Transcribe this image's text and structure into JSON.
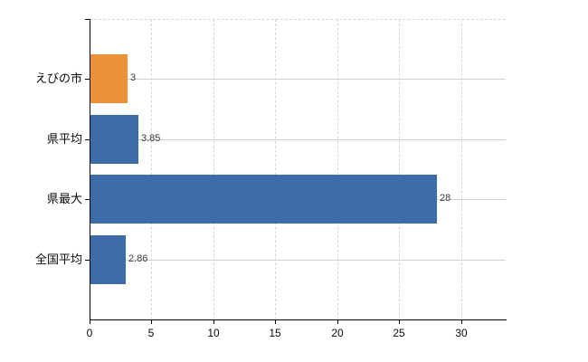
{
  "chart_data": {
    "type": "bar",
    "orientation": "horizontal",
    "title": "",
    "categories": [
      "えびの市",
      "県平均",
      "県最大",
      "全国平均"
    ],
    "values": [
      3,
      3.85,
      28,
      2.86
    ],
    "value_labels": [
      "3",
      "3.85",
      "28",
      "2.86"
    ],
    "bar_colors": [
      "#EC9138",
      "#3C6DA6",
      "#3C6DA6",
      "#3C6DA6"
    ],
    "highlight_color": "#EC9138",
    "default_bar_color": "#3C6DA6",
    "x_tick_labels": [
      "0",
      "5",
      "10",
      "15",
      "20",
      "25",
      "30"
    ],
    "x_tick_values": [
      0,
      5,
      10,
      15,
      20,
      25,
      30
    ],
    "xlim": [
      0,
      33.6
    ],
    "ylabel": "",
    "xlabel": "",
    "legend": "none",
    "grid": {
      "vertical": "dashed",
      "horizontal": "solid-at-category-centers",
      "top_border": "dashed"
    },
    "colors": {
      "background": "#ffffff",
      "axis": "#000000",
      "vertical_gridline": "#d7d7d7",
      "horizontal_gridline": "#cdd3cc",
      "value_label": "#3a3a3a",
      "tick_label": "#0a0a0a"
    }
  }
}
